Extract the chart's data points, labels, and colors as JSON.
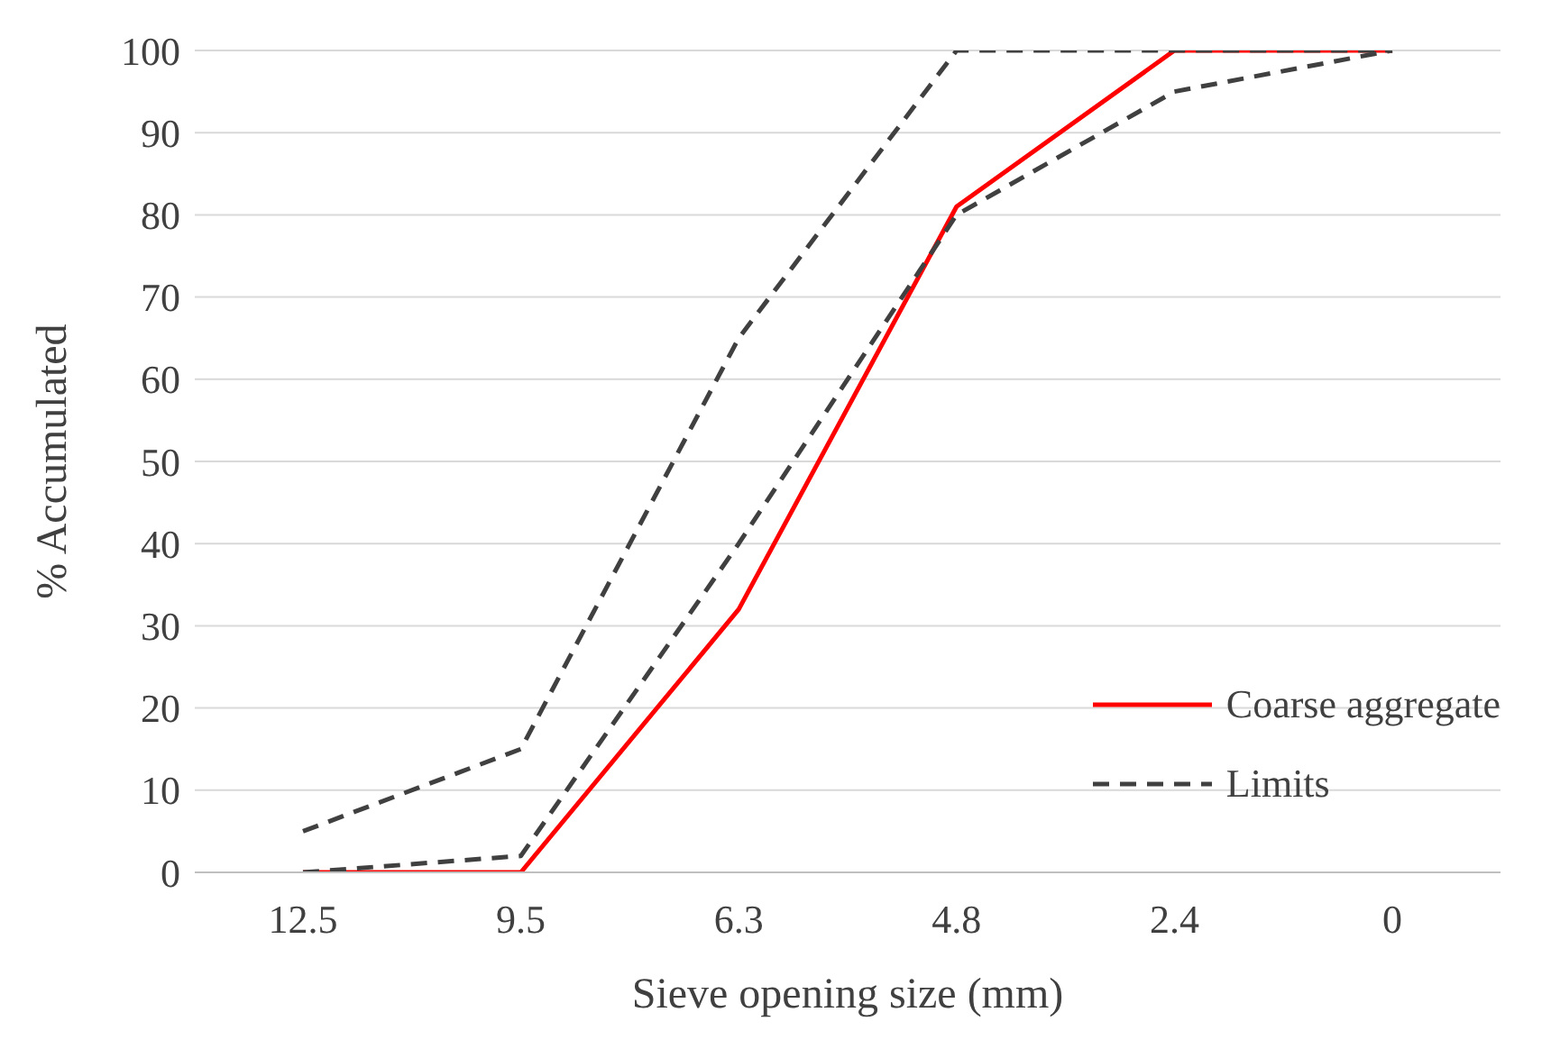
{
  "chart_data": {
    "type": "line",
    "xlabel": "Sieve opening size (mm)",
    "ylabel": "% Accumulated",
    "categories": [
      "12.5",
      "9.5",
      "6.3",
      "4.8",
      "2.4",
      "0"
    ],
    "series": [
      {
        "name": "Coarse aggregate",
        "color": "#ff0000",
        "values": [
          0,
          0,
          32,
          81,
          100,
          100
        ],
        "line_style": "solid"
      },
      {
        "name": "Limits",
        "color": "#404040",
        "values": [
          5,
          15,
          65,
          100,
          100,
          100
        ],
        "line_style": "dashed"
      },
      {
        "color": "#404040",
        "values": [
          0,
          2,
          40,
          80,
          95,
          100
        ],
        "line_style": "dashed"
      }
    ],
    "ylim": [
      0,
      100
    ],
    "yticks": [
      0,
      10,
      20,
      30,
      40,
      50,
      60,
      70,
      80,
      90,
      100
    ],
    "grid": "y",
    "legend": "bottom right",
    "marker": "none"
  }
}
